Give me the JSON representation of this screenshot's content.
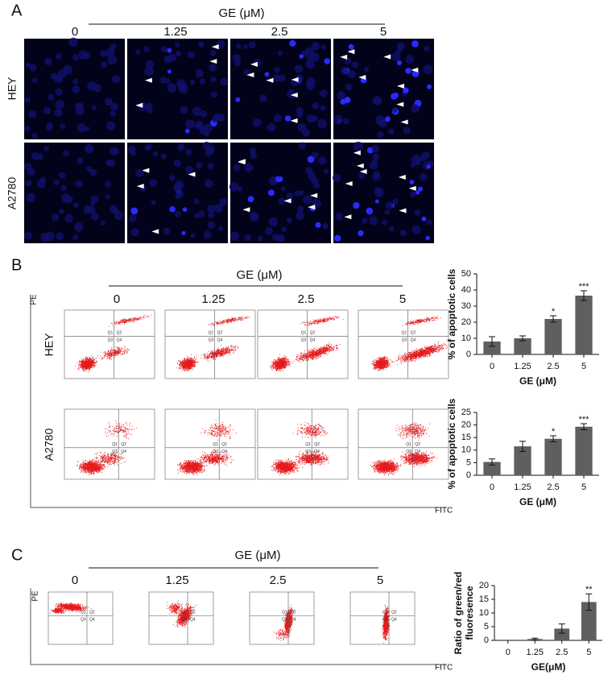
{
  "figure": {
    "panel_a": {
      "label": "A",
      "header": "GE (μM)",
      "columns": [
        "0",
        "1.25",
        "2.5",
        "5"
      ],
      "rows": [
        "HEY",
        "A2780"
      ]
    },
    "panel_b": {
      "label": "B",
      "header": "GE (μM)",
      "columns": [
        "0",
        "1.25",
        "2.5",
        "5"
      ],
      "rows": [
        "HEY",
        "A2780"
      ],
      "y_axis_label": "PE",
      "x_axis_label": "FITC",
      "quadrant_labels": [
        "Q1",
        "Q2",
        "Q3",
        "Q4"
      ]
    },
    "panel_c": {
      "label": "C",
      "header": "GE (μM)",
      "columns": [
        "0",
        "1.25",
        "2.5",
        "5"
      ],
      "y_axis_label": "PE",
      "x_axis_label": "FITC",
      "quadrant_labels": [
        "Q1",
        "Q2",
        "Q3",
        "Q4"
      ]
    }
  },
  "chart_data": [
    {
      "type": "bar",
      "ylabel": [
        "% of apoptotic cells"
      ],
      "xlabel": "GE (μM)",
      "categories": [
        "0",
        "1.25",
        "2.5",
        "5"
      ],
      "values": [
        8,
        10,
        22,
        36.5
      ],
      "errors": [
        3,
        1.5,
        2,
        3
      ],
      "significance": [
        null,
        null,
        "*",
        "***"
      ],
      "color": "#5f5f5f",
      "ylim": [
        0,
        50
      ],
      "yticks": [
        0,
        10,
        20,
        30,
        40,
        50
      ]
    },
    {
      "type": "bar",
      "ylabel": [
        "% of apoptotic cells"
      ],
      "xlabel": "GE (μM)",
      "categories": [
        "0",
        "1.25",
        "2.5",
        "5"
      ],
      "values": [
        5.3,
        11.5,
        14.5,
        19.3
      ],
      "errors": [
        1.2,
        2,
        1.2,
        1.2
      ],
      "significance": [
        null,
        null,
        "*",
        "***"
      ],
      "color": "#5f5f5f",
      "ylim": [
        0,
        25
      ],
      "yticks": [
        0,
        5,
        10,
        15,
        20,
        25
      ]
    },
    {
      "type": "bar",
      "ylabel": [
        "Ratio of green/red",
        "fluoresence"
      ],
      "xlabel": "GE(μM)",
      "categories": [
        "0",
        "1.25",
        "2.5",
        "5"
      ],
      "values": [
        0,
        0.5,
        4.3,
        14
      ],
      "errors": [
        0,
        0.3,
        1.7,
        3
      ],
      "significance": [
        null,
        null,
        null,
        "**"
      ],
      "color": "#5f5f5f",
      "ylim": [
        0,
        20
      ],
      "yticks": [
        0,
        5,
        10,
        15,
        20
      ]
    }
  ]
}
